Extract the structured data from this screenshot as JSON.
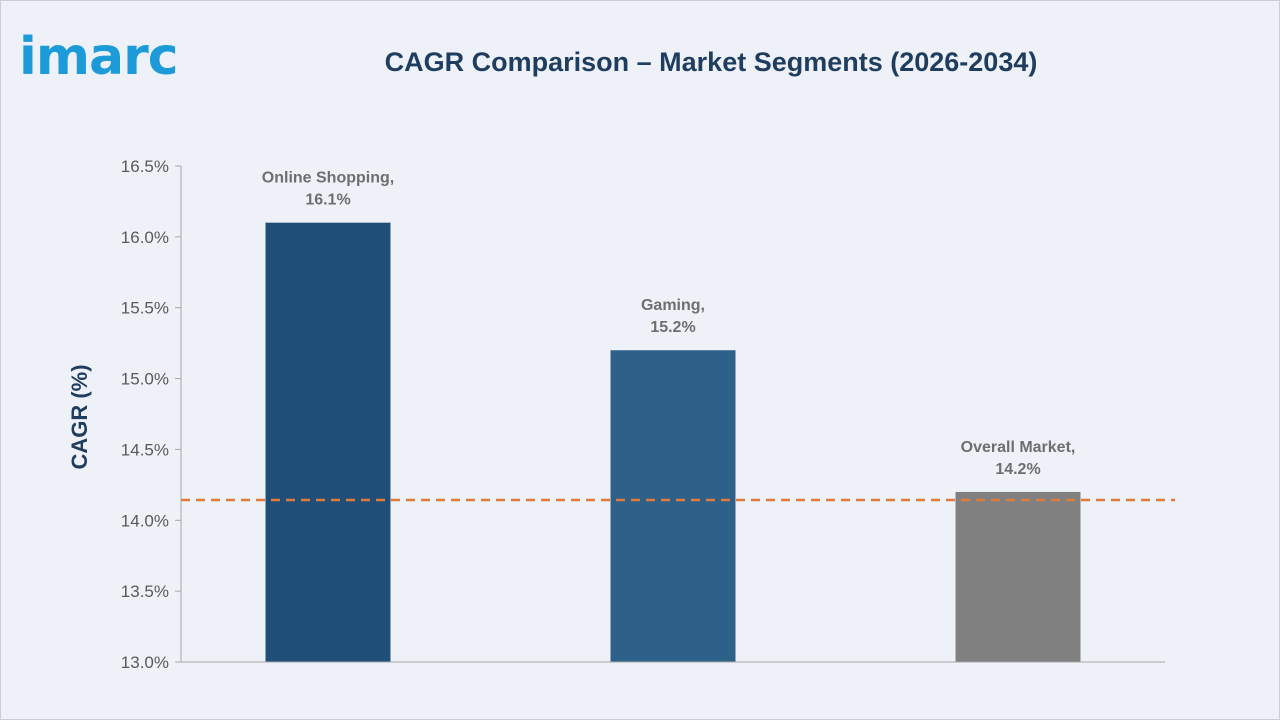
{
  "brand": {
    "logo_text": "imarc",
    "logo_color": "#1C9BD8"
  },
  "chart_data": {
    "type": "bar",
    "title": "CAGR Comparison – Market Segments (2026-2034)",
    "xlabel": "",
    "ylabel": "CAGR (%)",
    "ylim": [
      13.0,
      16.5
    ],
    "yticks": [
      13.0,
      13.5,
      14.0,
      14.5,
      15.0,
      15.5,
      16.0,
      16.5
    ],
    "ytick_labels": [
      "13.0%",
      "13.5%",
      "14.0%",
      "14.5%",
      "15.0%",
      "15.5%",
      "16.0%",
      "16.5%"
    ],
    "categories": [
      "Online Shopping",
      "Gaming",
      "Overall Market"
    ],
    "values": [
      16.1,
      15.2,
      14.2
    ],
    "data_labels": [
      [
        "Online Shopping,",
        "16.1%"
      ],
      [
        "Gaming,",
        "15.2%"
      ],
      [
        "Overall Market,",
        "14.2%"
      ]
    ],
    "bar_colors": [
      "#1F4E79",
      "#2E6189",
      "#808080"
    ],
    "reference_line": {
      "value": 14.2,
      "color": "#E07B39",
      "style": "dashed"
    },
    "grid": false,
    "legend": "none"
  }
}
